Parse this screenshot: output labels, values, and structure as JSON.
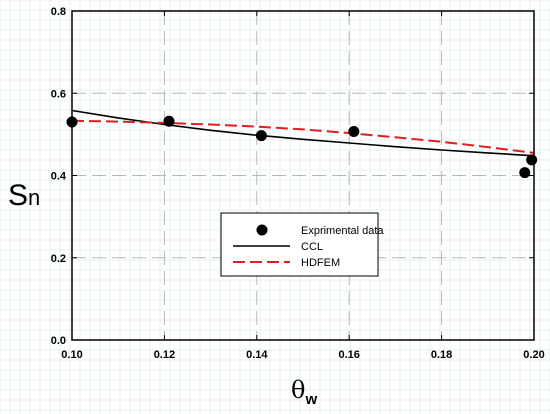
{
  "chart_data": {
    "type": "line",
    "title": "",
    "ylabel": "S",
    "ylabel_sub": "n",
    "xlabel": "θ",
    "xlabel_sub": "w",
    "xlim": [
      0.1,
      0.2
    ],
    "ylim": [
      0.0,
      0.8
    ],
    "x_ticks": [
      "0.10",
      "0.12",
      "0.14",
      "0.16",
      "0.18",
      "0.20"
    ],
    "y_ticks": [
      "0.0",
      "0.2",
      "0.4",
      "0.6",
      "0.8"
    ],
    "grid": true,
    "legend_position": "center",
    "series": [
      {
        "name": "Exprimental data",
        "kind": "scatter",
        "color": "#000000",
        "x": [
          0.1,
          0.121,
          0.141,
          0.161,
          0.198,
          0.1995
        ],
        "y": [
          0.53,
          0.532,
          0.497,
          0.507,
          0.407,
          0.438
        ]
      },
      {
        "name": "CCL",
        "kind": "line",
        "color": "#000000",
        "dash": "solid",
        "x": [
          0.1,
          0.11,
          0.12,
          0.13,
          0.14,
          0.15,
          0.16,
          0.17,
          0.18,
          0.19,
          0.2
        ],
        "y": [
          0.558,
          0.54,
          0.524,
          0.51,
          0.498,
          0.488,
          0.479,
          0.47,
          0.462,
          0.455,
          0.448
        ]
      },
      {
        "name": "HDFEM",
        "kind": "line",
        "color": "#e02020",
        "dash": "dashed",
        "x": [
          0.1,
          0.11,
          0.12,
          0.13,
          0.14,
          0.15,
          0.16,
          0.17,
          0.18,
          0.19,
          0.2
        ],
        "y": [
          0.533,
          0.531,
          0.528,
          0.524,
          0.519,
          0.512,
          0.503,
          0.493,
          0.482,
          0.469,
          0.455
        ]
      }
    ]
  }
}
